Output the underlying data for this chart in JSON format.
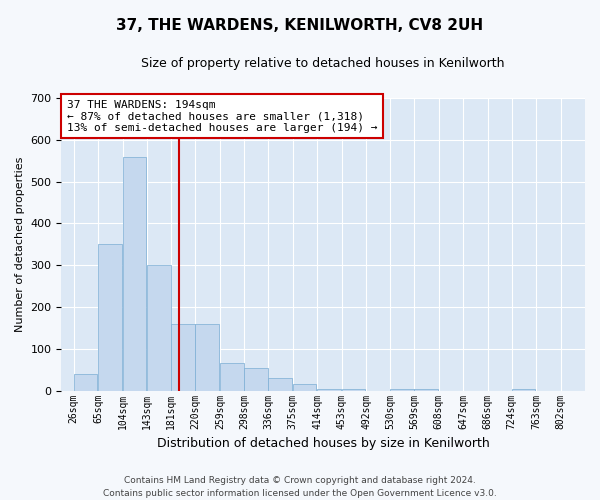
{
  "title": "37, THE WARDENS, KENILWORTH, CV8 2UH",
  "subtitle": "Size of property relative to detached houses in Kenilworth",
  "xlabel": "Distribution of detached houses by size in Kenilworth",
  "ylabel": "Number of detached properties",
  "footer_line1": "Contains HM Land Registry data © Crown copyright and database right 2024.",
  "footer_line2": "Contains public sector information licensed under the Open Government Licence v3.0.",
  "annotation_line1": "37 THE WARDENS: 194sqm",
  "annotation_line2": "← 87% of detached houses are smaller (1,318)",
  "annotation_line3": "13% of semi-detached houses are larger (194) →",
  "bins": [
    26,
    65,
    104,
    143,
    181,
    220,
    259,
    298,
    336,
    375,
    414,
    453,
    492,
    530,
    569,
    608,
    647,
    686,
    724,
    763,
    802
  ],
  "bin_labels": [
    "26sqm",
    "65sqm",
    "104sqm",
    "143sqm",
    "181sqm",
    "220sqm",
    "259sqm",
    "298sqm",
    "336sqm",
    "375sqm",
    "414sqm",
    "453sqm",
    "492sqm",
    "530sqm",
    "569sqm",
    "608sqm",
    "647sqm",
    "686sqm",
    "724sqm",
    "763sqm",
    "802sqm"
  ],
  "counts": [
    40,
    350,
    560,
    300,
    160,
    160,
    65,
    55,
    30,
    15,
    5,
    5,
    0,
    5,
    5,
    0,
    0,
    0,
    5,
    0
  ],
  "bar_color": "#c5d8ee",
  "bar_edge_color": "#7aadd4",
  "vline_color": "#cc0000",
  "vline_x": 194,
  "outer_bg_color": "#f5f8fc",
  "plot_bg_color": "#dce8f5",
  "ylim": [
    0,
    700
  ],
  "yticks": [
    0,
    100,
    200,
    300,
    400,
    500,
    600,
    700
  ],
  "grid_color": "#ffffff",
  "title_fontsize": 11,
  "subtitle_fontsize": 9,
  "annotation_fontsize": 8,
  "ylabel_fontsize": 8,
  "xlabel_fontsize": 9,
  "footer_fontsize": 6.5
}
